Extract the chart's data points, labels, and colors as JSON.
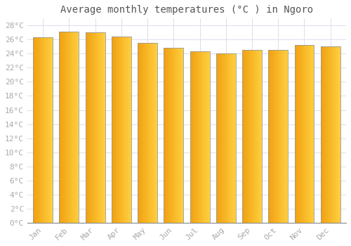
{
  "title": "Average monthly temperatures (°C ) in Ngoro",
  "months": [
    "Jan",
    "Feb",
    "Mar",
    "Apr",
    "May",
    "Jun",
    "Jul",
    "Aug",
    "Sep",
    "Oct",
    "Nov",
    "Dec"
  ],
  "values": [
    26.3,
    27.1,
    27.0,
    26.4,
    25.5,
    24.8,
    24.3,
    24.0,
    24.5,
    24.5,
    25.2,
    25.0
  ],
  "bar_color_left": "#F0A010",
  "bar_color_right": "#FFD040",
  "bar_edge_color": "#999999",
  "background_color": "#FFFFFF",
  "grid_color": "#DDDDEE",
  "ytick_step": 2,
  "ymin": 0,
  "ymax": 29,
  "title_fontsize": 10,
  "tick_fontsize": 8,
  "tick_label_color": "#AAAAAA",
  "title_color": "#555555",
  "bar_width": 0.75,
  "n_grad": 50
}
